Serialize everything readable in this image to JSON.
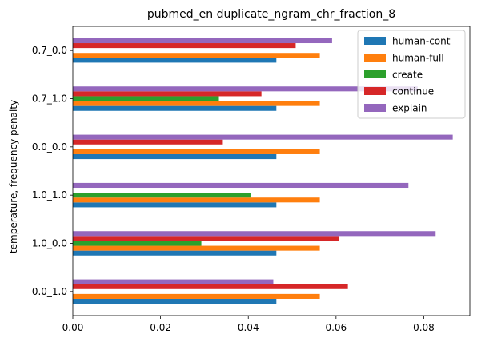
{
  "chart_data": {
    "type": "bar",
    "orientation": "horizontal",
    "title": "pubmed_en duplicate_ngram_chr_fraction_8",
    "ylabel": "temperature, frequency penalty",
    "xlabel": "",
    "xlim": [
      0,
      0.0905
    ],
    "xticks": [
      0.0,
      0.02,
      0.04,
      0.06,
      0.08
    ],
    "xtick_labels": [
      "0.00",
      "0.02",
      "0.04",
      "0.06",
      "0.08"
    ],
    "categories": [
      "0.0_1.0",
      "1.0_0.0",
      "1.0_1.0",
      "0.0_0.0",
      "0.7_1.0",
      "0.7_0.0"
    ],
    "series": [
      {
        "name": "human-cont",
        "color": "#1f77b4",
        "values": [
          0.0464,
          0.0464,
          0.0464,
          0.0464,
          0.0464,
          0.0464
        ]
      },
      {
        "name": "human-full",
        "color": "#ff7f0e",
        "values": [
          0.0563,
          0.0563,
          0.0563,
          0.0563,
          0.0563,
          0.0563
        ]
      },
      {
        "name": "create",
        "color": "#2ca02c",
        "values": [
          0,
          0.0293,
          0.0405,
          0,
          0.0333,
          0
        ]
      },
      {
        "name": "continue",
        "color": "#d62728",
        "values": [
          0.0627,
          0.0607,
          0,
          0.0342,
          0.043,
          0.0508
        ]
      },
      {
        "name": "explain",
        "color": "#9467bd",
        "values": [
          0.0457,
          0.0827,
          0.0765,
          0.0866,
          0.0786,
          0.0591
        ]
      }
    ],
    "legend_position": "top-right",
    "grid": false
  }
}
